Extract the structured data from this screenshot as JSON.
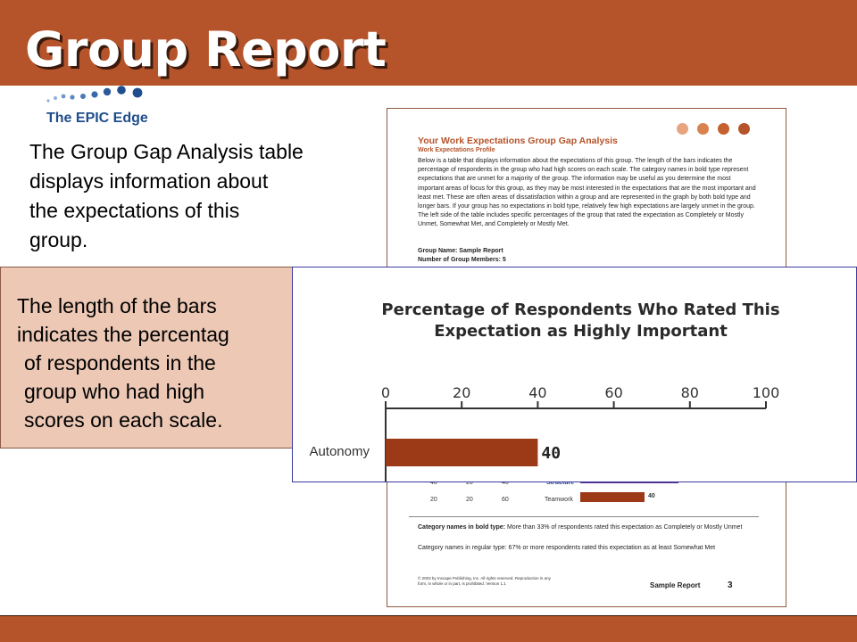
{
  "slide": {
    "title": "Group Report",
    "logo_text": "The EPIC Edge",
    "intro_lines": [
      "The Group Gap Analysis table",
      "displays information about",
      "the expectations of this",
      "group."
    ],
    "callout_lines": [
      "The length of the bars",
      "indicates the percentag",
      "of respondents in the",
      "group who had high",
      "scores on each scale."
    ]
  },
  "document": {
    "heading": "Your Work Expectations Group Gap Analysis",
    "subheading": "Work Expectations Profile",
    "body": "Below is a table that displays information about the expectations of this group. The length of the bars indicates the percentage of respondents in the group who had high scores on each scale. The category names in bold type represent expectations that are unmet for a majority of the group. The information may be useful as you determine the most important areas of focus for this group, as they may be most interested in the expectations that are the most important and least met. These are often areas of dissatisfaction within a group and are represented in the graph by both bold type and longer bars. If your group has no expectations in bold type, relatively few high expectations are largely unmet in the group. The left side of the table includes specific percentages of the group that rated the expectation as Completely or Mostly Unmet, Somewhat Met, and Completely or Mostly Met.",
    "group_name": "Group Name: Sample Report",
    "group_members": "Number of Group Members: 5",
    "rows": [
      {
        "c1": "40",
        "c2": "20",
        "c3": "40",
        "category": "Structure"
      },
      {
        "c1": "20",
        "c2": "20",
        "c3": "60",
        "category": "Teamwork",
        "value": "40"
      }
    ],
    "note_bold_label": "Category names in bold type:",
    "note_bold": " More than 33% of respondents rated this expectation as Completely or Mostly Unmet",
    "note_regular": "Category names in regular type: 67% or more respondents rated this expectation as at least Somewhat Met",
    "copyright": "© 2003 by Inscape Publishing, Inc. All rights reserved. Reproduction in any form, in whole or in part, is prohibited. Version 1.1",
    "footer_label": "Sample Report",
    "page_number": "3",
    "dot_colors": [
      "#e6a57e",
      "#d9824f",
      "#c5612f",
      "#b5532a"
    ]
  },
  "chart_data": {
    "type": "bar",
    "orientation": "horizontal",
    "title": "Percentage of Respondents Who Rated This Expectation as Highly Important",
    "title_lines": [
      "Percentage of Respondents Who Rated This",
      "Expectation as Highly Important"
    ],
    "categories": [
      "Autonomy"
    ],
    "values": [
      40
    ],
    "data_labels": [
      "40"
    ],
    "xlim": [
      0,
      100
    ],
    "ticks": [
      0,
      20,
      40,
      60,
      80,
      100
    ],
    "tick_labels": [
      "0",
      "20",
      "40",
      "60",
      "80",
      "100"
    ],
    "bar_color": "#9c3a17",
    "grid": false
  },
  "colors": {
    "accent": "#b5532a",
    "callout_bg": "#ecc8b5",
    "logo_blue": "#1f4e8c"
  }
}
